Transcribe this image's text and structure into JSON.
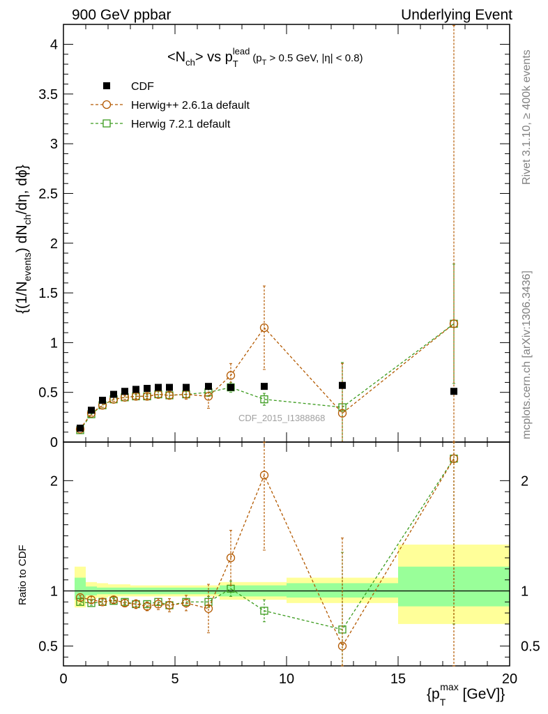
{
  "header": {
    "left": "900 GeV ppbar",
    "right": "Underlying Event"
  },
  "side": {
    "rivet": "Rivet 3.1.10, ≥ 400k events",
    "mcplots": "mcplots.cern.ch [arXiv:1306.3436]"
  },
  "watermark": "CDF_2015_I1388868",
  "plot_title": {
    "main": "<N",
    "ch_sub": "ch",
    "vs": "> vs p",
    "t_sub": "T",
    "lead_sup": "lead",
    "cut_open": "(p",
    "cut_t_sub": "T",
    "cut_rest": " > 0.5 GeV, |η| < 0.8)"
  },
  "ylabel": {
    "part1": "{(1/N",
    "events_sub": "events",
    "part2": ") dN",
    "ch_sub": "ch",
    "part3": "/dη, dϕ}"
  },
  "xlabel": {
    "part1": "{p",
    "t_sub": "T",
    "max_sup": "max",
    "part2": " [GeV]}"
  },
  "ratio_ylabel": "Ratio to CDF",
  "colors": {
    "cdf": "#000000",
    "herwigpp": "#b35900",
    "herwig7": "#3a9a1c",
    "band_inner": "#99ff99",
    "band_outer": "#ffff99"
  },
  "chart_data": [
    {
      "type": "scatter",
      "panel": "main",
      "xlim": [
        0,
        20
      ],
      "ylim": [
        0,
        4.2
      ],
      "yticks": [
        0,
        0.5,
        1,
        1.5,
        2,
        2.5,
        3,
        3.5,
        4
      ],
      "ytick_labels": [
        "0",
        "0.5",
        "1",
        "1.5",
        "2",
        "2.5",
        "3",
        "3.5",
        "4"
      ],
      "legend_position": "top-left",
      "series": [
        {
          "name": "CDF",
          "style": "filled-square",
          "x": [
            0.75,
            1.25,
            1.75,
            2.25,
            2.75,
            3.25,
            3.75,
            4.25,
            4.75,
            5.5,
            6.5,
            7.5,
            9.0,
            12.5,
            17.5
          ],
          "y": [
            0.14,
            0.32,
            0.42,
            0.48,
            0.51,
            0.53,
            0.54,
            0.55,
            0.55,
            0.55,
            0.56,
            0.55,
            0.56,
            0.57,
            0.51
          ],
          "yerr": [
            0.01,
            0.01,
            0.01,
            0.01,
            0.01,
            0.01,
            0.01,
            0.01,
            0.01,
            0.01,
            0.01,
            0.02,
            0.02,
            0.03,
            0.03
          ]
        },
        {
          "name": "Herwig++ 2.6.1a default",
          "style": "open-circle-dashed",
          "x": [
            0.75,
            1.25,
            1.75,
            2.25,
            2.75,
            3.25,
            3.75,
            4.25,
            4.75,
            5.5,
            6.5,
            7.5,
            9.0,
            12.5,
            17.5
          ],
          "y": [
            0.13,
            0.29,
            0.37,
            0.43,
            0.45,
            0.46,
            0.46,
            0.48,
            0.47,
            0.48,
            0.46,
            0.67,
            1.15,
            0.29,
            1.19
          ],
          "yerr": [
            0.01,
            0.02,
            0.02,
            0.02,
            0.02,
            0.03,
            0.03,
            0.04,
            0.04,
            0.05,
            0.12,
            0.12,
            0.42,
            0.5,
            3.0
          ]
        },
        {
          "name": "Herwig 7.2.1 default",
          "style": "open-square-dashed",
          "x": [
            0.75,
            1.25,
            1.75,
            2.25,
            2.75,
            3.25,
            3.75,
            4.25,
            4.75,
            5.5,
            6.5,
            7.5,
            9.0,
            12.5,
            17.5
          ],
          "y": [
            0.12,
            0.28,
            0.37,
            0.43,
            0.45,
            0.46,
            0.46,
            0.48,
            0.47,
            0.48,
            0.5,
            0.55,
            0.43,
            0.35,
            1.19
          ],
          "yerr": [
            0.01,
            0.01,
            0.02,
            0.02,
            0.02,
            0.02,
            0.02,
            0.03,
            0.03,
            0.03,
            0.04,
            0.05,
            0.06,
            0.45,
            0.6
          ]
        }
      ]
    },
    {
      "type": "scatter",
      "panel": "ratio",
      "xlim": [
        0,
        20
      ],
      "ylim": [
        0.32,
        2.35
      ],
      "yticks": [
        0.5,
        1,
        2
      ],
      "ytick_labels": [
        "0.5",
        "1",
        "2"
      ],
      "xticks": [
        0,
        5,
        10,
        15,
        20
      ],
      "xtick_labels": [
        "0",
        "5",
        "10",
        "15",
        "20"
      ],
      "reference_line": 1,
      "bands": [
        {
          "x0": 0.5,
          "x1": 1.0,
          "inner": [
            0.92,
            1.12
          ],
          "outer": [
            0.85,
            1.22
          ]
        },
        {
          "x0": 1.0,
          "x1": 1.5,
          "inner": [
            0.96,
            1.04
          ],
          "outer": [
            0.93,
            1.08
          ]
        },
        {
          "x0": 1.5,
          "x1": 2.0,
          "inner": [
            0.97,
            1.03
          ],
          "outer": [
            0.94,
            1.07
          ]
        },
        {
          "x0": 2.0,
          "x1": 2.5,
          "inner": [
            0.97,
            1.03
          ],
          "outer": [
            0.95,
            1.06
          ]
        },
        {
          "x0": 2.5,
          "x1": 3.0,
          "inner": [
            0.97,
            1.03
          ],
          "outer": [
            0.95,
            1.06
          ]
        },
        {
          "x0": 3.0,
          "x1": 3.5,
          "inner": [
            0.97,
            1.03
          ],
          "outer": [
            0.95,
            1.05
          ]
        },
        {
          "x0": 3.5,
          "x1": 4.0,
          "inner": [
            0.97,
            1.03
          ],
          "outer": [
            0.95,
            1.05
          ]
        },
        {
          "x0": 4.0,
          "x1": 4.5,
          "inner": [
            0.97,
            1.03
          ],
          "outer": [
            0.95,
            1.05
          ]
        },
        {
          "x0": 4.5,
          "x1": 5.0,
          "inner": [
            0.97,
            1.03
          ],
          "outer": [
            0.95,
            1.05
          ]
        },
        {
          "x0": 5.0,
          "x1": 6.0,
          "inner": [
            0.97,
            1.03
          ],
          "outer": [
            0.95,
            1.05
          ]
        },
        {
          "x0": 6.0,
          "x1": 7.0,
          "inner": [
            0.97,
            1.03
          ],
          "outer": [
            0.95,
            1.05
          ]
        },
        {
          "x0": 7.0,
          "x1": 8.0,
          "inner": [
            0.95,
            1.05
          ],
          "outer": [
            0.92,
            1.08
          ]
        },
        {
          "x0": 8.0,
          "x1": 10.0,
          "inner": [
            0.95,
            1.05
          ],
          "outer": [
            0.92,
            1.08
          ]
        },
        {
          "x0": 10.0,
          "x1": 15.0,
          "inner": [
            0.94,
            1.07
          ],
          "outer": [
            0.89,
            1.12
          ]
        },
        {
          "x0": 15.0,
          "x1": 20.0,
          "inner": [
            0.86,
            1.22
          ],
          "outer": [
            0.7,
            1.42
          ]
        }
      ],
      "series": [
        {
          "name": "Herwig++ 2.6.1a default",
          "x": [
            0.75,
            1.25,
            1.75,
            2.25,
            2.75,
            3.25,
            3.75,
            4.25,
            4.75,
            5.5,
            6.5,
            7.5,
            9.0,
            12.5,
            17.5
          ],
          "y": [
            0.94,
            0.92,
            0.9,
            0.92,
            0.89,
            0.88,
            0.86,
            0.88,
            0.87,
            0.89,
            0.84,
            1.3,
            2.05,
            0.5,
            2.2
          ],
          "yerr": [
            0.02,
            0.03,
            0.03,
            0.03,
            0.03,
            0.04,
            0.04,
            0.05,
            0.06,
            0.07,
            0.22,
            0.25,
            0.68,
            0.98,
            2.0
          ]
        },
        {
          "name": "Herwig 7.2.1 default",
          "x": [
            0.75,
            1.25,
            1.75,
            2.25,
            2.75,
            3.25,
            3.75,
            4.25,
            4.75,
            5.5,
            6.5,
            7.5,
            9.0,
            12.5,
            17.5
          ],
          "y": [
            0.9,
            0.89,
            0.9,
            0.91,
            0.9,
            0.88,
            0.88,
            0.9,
            0.87,
            0.9,
            0.9,
            1.02,
            0.82,
            0.65,
            2.2
          ],
          "yerr": [
            0.02,
            0.02,
            0.02,
            0.02,
            0.02,
            0.02,
            0.02,
            0.03,
            0.03,
            0.03,
            0.05,
            0.07,
            0.1,
            0.7,
            1.5
          ]
        }
      ]
    }
  ]
}
